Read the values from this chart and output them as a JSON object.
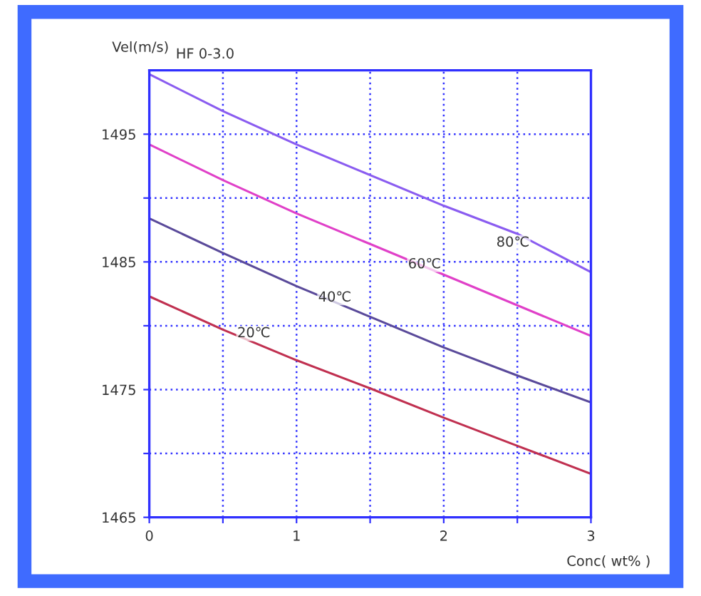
{
  "chart_data": {
    "type": "line",
    "title": "HF 0-3.0",
    "ylabel": "Vel(m/s)",
    "xlabel": "Conc( wt% )",
    "x": [
      0,
      0.5,
      1,
      1.5,
      2,
      2.5,
      3
    ],
    "series": [
      {
        "color": "#8a5cf0",
        "values": [
          1499.7,
          1496.8,
          1494.2,
          1491.8,
          1489.4,
          1487.2,
          1484.2
        ]
      },
      {
        "color": "#e040c8",
        "values": [
          1494.2,
          1491.4,
          1488.8,
          1486.4,
          1484.0,
          1481.6,
          1479.2
        ]
      },
      {
        "color": "#5a4a9a",
        "values": [
          1488.4,
          1485.7,
          1483.1,
          1480.7,
          1478.3,
          1476.1,
          1474.0
        ]
      },
      {
        "color": "#c03050",
        "values": [
          1482.3,
          1479.7,
          1477.3,
          1475.1,
          1472.8,
          1470.6,
          1468.4
        ]
      }
    ],
    "xlim": [
      0,
      3
    ],
    "ylim": [
      1465,
      1500
    ],
    "xticks": [
      0,
      {
        "value": 0.5,
        "label": null
      },
      1,
      {
        "value": 1.5,
        "label": null
      },
      2,
      {
        "value": 2.5,
        "label": null
      },
      3
    ],
    "yticks": [
      1465,
      {
        "value": 1470,
        "label": null
      },
      1475,
      {
        "value": 1480,
        "label": null
      },
      1485,
      {
        "value": 1490,
        "label": null
      },
      1495
    ],
    "grid": true,
    "marker": "none",
    "line_style": "solid",
    "legend": false,
    "annotations": [
      {
        "text": "80℃",
        "x": 2.47,
        "y": 1486.5
      },
      {
        "text": "60℃",
        "x": 1.87,
        "y": 1484.8
      },
      {
        "text": "40℃",
        "x": 1.26,
        "y": 1482.2
      },
      {
        "text": "20℃",
        "x": 0.71,
        "y": 1479.4
      }
    ]
  }
}
